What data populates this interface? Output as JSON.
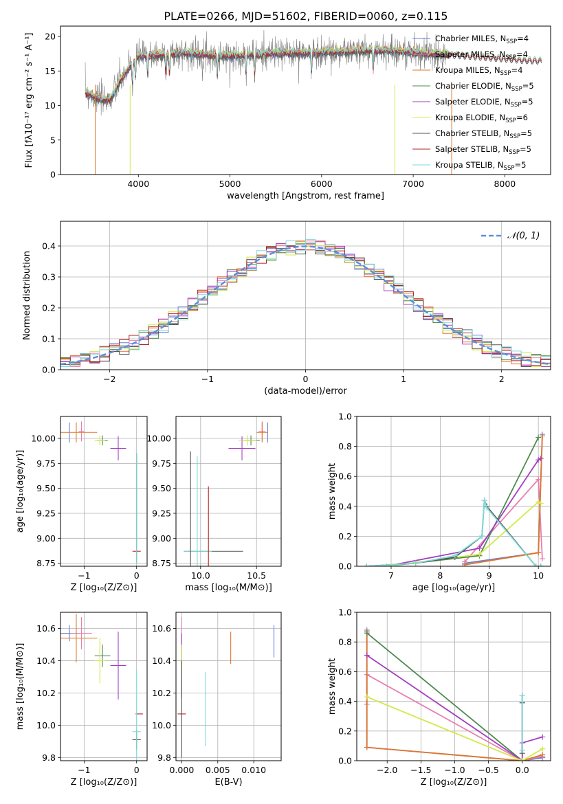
{
  "title": "PLATE=0266, MJD=51602, FIBERID=0060, z=0.115",
  "colors": {
    "chabrier_miles": "#6a7fd8",
    "salpeter_miles": "#e77fb0",
    "kroupa_miles": "#e0762a",
    "chabrier_elodie": "#4f8a4f",
    "salpeter_elodie": "#a33fbf",
    "kroupa_elodie": "#d4e84a",
    "chabrier_stelib": "#555555",
    "salpeter_stelib": "#b22222",
    "kroupa_stelib": "#7fdada",
    "normal": "#5b8fd9"
  },
  "chart_data": [
    {
      "id": "spectrum",
      "type": "line",
      "xlabel": "wavelength [Angstrom, rest frame]",
      "ylabel": "Flux [fλ10⁻¹⁷ erg cm⁻² s⁻¹ A⁻¹]",
      "xlim": [
        3150,
        8500
      ],
      "ylim": [
        0,
        21.5
      ],
      "xticks": [
        "4000",
        "5000",
        "6000",
        "7000",
        "8000"
      ],
      "xtick_values": [
        4000,
        5000,
        6000,
        7000,
        8000
      ],
      "yticks": [
        "0",
        "5",
        "10",
        "15",
        "20"
      ],
      "ytick_values": [
        0,
        5,
        10,
        15,
        20
      ],
      "legend": "upper right",
      "series": [
        {
          "name": "Chabrier MILES, N_SSP=4",
          "key": "chabrier_miles"
        },
        {
          "name": "Salpeter MILES, N_SSP=4",
          "key": "salpeter_miles"
        },
        {
          "name": "Kroupa MILES, N_SSP=4",
          "key": "kroupa_miles"
        },
        {
          "name": "Chabrier ELODIE, N_SSP=5",
          "key": "chabrier_elodie"
        },
        {
          "name": "Salpeter ELODIE, N_SSP=5",
          "key": "salpeter_elodie"
        },
        {
          "name": "Kroupa ELODIE, N_SSP=6",
          "key": "kroupa_elodie"
        },
        {
          "name": "Chabrier STELIB, N_SSP=5",
          "key": "chabrier_stelib"
        },
        {
          "name": "Salpeter STELIB, N_SSP=5",
          "key": "salpeter_stelib"
        },
        {
          "name": "Kroupa STELIB, N_SSP=5",
          "key": "kroupa_stelib"
        }
      ],
      "continuum": {
        "x": [
          3420,
          3500,
          3600,
          3700,
          3800,
          3900,
          4000,
          4200,
          4500,
          4800,
          5000,
          5300,
          5600,
          6000,
          6300,
          6600,
          6900,
          7200,
          7500,
          7800,
          8000,
          8200,
          8400
        ],
        "y": [
          12,
          11.4,
          10.8,
          11,
          13.5,
          15.5,
          17.2,
          17.3,
          17.6,
          17.3,
          17.2,
          17.4,
          17.6,
          17.7,
          17.8,
          18,
          17.8,
          17.5,
          17.3,
          17.0,
          16.8,
          16.6,
          16.5
        ]
      },
      "data_range": [
        3420,
        7350
      ],
      "model_range": [
        3420,
        8400
      ]
    },
    {
      "id": "residual_histogram",
      "type": "histogram",
      "xlabel": "(data-model)/error",
      "ylabel": "Normed distribution",
      "xlim": [
        -2.5,
        2.5
      ],
      "ylim": [
        0,
        0.48
      ],
      "xticks": [
        "−2",
        "−1",
        "0",
        "1",
        "2"
      ],
      "xtick_values": [
        -2,
        -1,
        0,
        1,
        2
      ],
      "yticks": [
        "0.0",
        "0.1",
        "0.2",
        "0.3",
        "0.4"
      ],
      "ytick_values": [
        0,
        0.1,
        0.2,
        0.3,
        0.4
      ],
      "legend_entry": "𝒩(0, 1)",
      "bin_width": 0.1,
      "grid": true
    },
    {
      "id": "age_vs_Z",
      "type": "scatter",
      "xlabel": "Z [log₁₀(Z/Z⊙)]",
      "ylabel": "age  [log₁₀(age/yr)]",
      "xlim": [
        -1.45,
        0.2
      ],
      "ylim": [
        8.72,
        10.22
      ],
      "xticks": [
        "−1",
        "0"
      ],
      "xtick_values": [
        -1,
        0
      ],
      "yticks": [
        "8.75",
        "9.00",
        "9.25",
        "9.50",
        "9.75",
        "10.00"
      ],
      "ytick_values": [
        8.75,
        9.0,
        9.25,
        9.5,
        9.75,
        10.0
      ],
      "points": [
        {
          "key": "chabrier_miles",
          "x": -1.28,
          "y": 10.06,
          "xerr": 0.0,
          "yerr": 0.1
        },
        {
          "key": "salpeter_miles",
          "x": -1.05,
          "y": 10.07,
          "xerr": 0.05,
          "yerr": 0.1
        },
        {
          "key": "kroupa_miles",
          "x": -1.15,
          "y": 10.06,
          "xerr": 0.4,
          "yerr": 0.1
        },
        {
          "key": "chabrier_elodie",
          "x": -0.65,
          "y": 9.98,
          "xerr": 0.1,
          "yerr": 0.05
        },
        {
          "key": "salpeter_elodie",
          "x": -0.35,
          "y": 9.9,
          "xerr": 0.15,
          "yerr": 0.12
        },
        {
          "key": "kroupa_elodie",
          "x": -0.7,
          "y": 9.98,
          "xerr": 0.1,
          "yerr": 0.05
        },
        {
          "key": "chabrier_stelib",
          "x": 0.0,
          "y": 9.3,
          "xerr": 0.0,
          "yerr": 0.55
        },
        {
          "key": "salpeter_stelib",
          "x": 0.0,
          "y": 8.87,
          "xerr": 0.0,
          "yerr": 0.0
        },
        {
          "key": "kroupa_stelib",
          "x": 0.0,
          "y": 9.3,
          "xerr": 0.0,
          "yerr": 0.55
        }
      ]
    },
    {
      "id": "age_vs_mass",
      "type": "scatter",
      "xlabel": "mass [log₁₀(M/M⊙)]",
      "ylabel": "",
      "xlim": [
        9.78,
        10.72
      ],
      "ylim": [
        8.72,
        10.22
      ],
      "xticks": [
        "10.0",
        "10.5"
      ],
      "xtick_values": [
        10.0,
        10.5
      ],
      "yticks": [
        "8.75",
        "9.00",
        "9.25",
        "9.50",
        "9.75",
        "10.00"
      ],
      "ytick_values": [
        8.75,
        9.0,
        9.25,
        9.5,
        9.75,
        10.0
      ],
      "points": [
        {
          "key": "chabrier_miles",
          "x": 10.6,
          "y": 10.06,
          "xerr": 0.0,
          "yerr": 0.1
        },
        {
          "key": "salpeter_miles",
          "x": 10.55,
          "y": 10.07,
          "xerr": 0.03,
          "yerr": 0.1
        },
        {
          "key": "kroupa_miles",
          "x": 10.55,
          "y": 10.06,
          "xerr": 0.05,
          "yerr": 0.1
        },
        {
          "key": "chabrier_elodie",
          "x": 10.45,
          "y": 9.98,
          "xerr": 0.08,
          "yerr": 0.05
        },
        {
          "key": "salpeter_elodie",
          "x": 10.37,
          "y": 9.9,
          "xerr": 0.12,
          "yerr": 0.12
        },
        {
          "key": "kroupa_elodie",
          "x": 10.42,
          "y": 9.98,
          "xerr": 0.08,
          "yerr": 0.05
        },
        {
          "key": "chabrier_stelib",
          "x": 9.91,
          "y": 8.87,
          "xerr": 0.0,
          "yerr": 1.0
        },
        {
          "key": "salpeter_stelib",
          "x": 10.07,
          "y": 8.87,
          "xerr": 0.0,
          "yerr": 0.65
        },
        {
          "key": "kroupa_stelib",
          "x": 9.97,
          "y": 8.87,
          "xerr": 0.0,
          "yerr": 0.95
        }
      ],
      "extra_segments": [
        {
          "key": "chabrier_stelib",
          "x0": 9.85,
          "x1": 10.38,
          "y": 8.87
        },
        {
          "key": "kroupa_stelib",
          "x0": 9.85,
          "x1": 10.1,
          "y": 8.87
        }
      ]
    },
    {
      "id": "massweight_vs_age",
      "type": "line",
      "xlabel": "age  [log₁₀(age/yr)]",
      "ylabel": "mass weight",
      "xlim": [
        6.3,
        10.25
      ],
      "ylim": [
        0,
        1.0
      ],
      "xticks": [
        "7",
        "8",
        "9",
        "10"
      ],
      "xtick_values": [
        7,
        8,
        9,
        10
      ],
      "yticks": [
        "0.0",
        "0.2",
        "0.4",
        "0.6",
        "0.8",
        "1.0"
      ],
      "ytick_values": [
        0,
        0.2,
        0.4,
        0.6,
        0.8,
        1.0
      ],
      "series": [
        {
          "key": "chabrier_miles",
          "x": [
            8.5,
            10.0,
            10.08
          ],
          "y": [
            0.02,
            0.09,
            0.88
          ]
        },
        {
          "key": "salpeter_miles",
          "x": [
            8.5,
            10.0,
            10.08
          ],
          "y": [
            0.03,
            0.58,
            0.05
          ]
        },
        {
          "key": "kroupa_miles",
          "x": [
            8.5,
            10.0,
            10.08
          ],
          "y": [
            0.01,
            0.09,
            0.87
          ]
        },
        {
          "key": "chabrier_elodie",
          "x": [
            6.9,
            8.8,
            10.0
          ],
          "y": [
            0.0,
            0.07,
            0.86
          ]
        },
        {
          "key": "salpeter_elodie",
          "x": [
            6.9,
            8.8,
            10.0,
            10.05
          ],
          "y": [
            0.0,
            0.12,
            0.71,
            0.72
          ]
        },
        {
          "key": "kroupa_elodie",
          "x": [
            6.9,
            8.8,
            10.0,
            10.05
          ],
          "y": [
            0.0,
            0.08,
            0.43,
            0.42
          ]
        },
        {
          "key": "chabrier_stelib",
          "x": [
            6.5,
            7.5,
            8.3,
            8.85,
            8.9,
            8.95,
            9.95,
            10.05
          ],
          "y": [
            0.0,
            0.02,
            0.06,
            0.2,
            0.44,
            0.4,
            0.0,
            0.0
          ]
        },
        {
          "key": "kroupa_stelib",
          "x": [
            6.5,
            7.5,
            8.3,
            8.85,
            8.9,
            8.95,
            9.95,
            10.05
          ],
          "y": [
            0.0,
            0.02,
            0.07,
            0.2,
            0.44,
            0.39,
            0.0,
            0.0
          ]
        }
      ]
    },
    {
      "id": "mass_vs_Z",
      "type": "scatter",
      "xlabel": "Z [log₁₀(Z/Z⊙)]",
      "ylabel": "mass [log₁₀(M/M⊙)]",
      "xlim": [
        -1.45,
        0.2
      ],
      "ylim": [
        9.78,
        10.7
      ],
      "xticks": [
        "−1",
        "0"
      ],
      "xtick_values": [
        -1,
        0
      ],
      "yticks": [
        "9.8",
        "10.0",
        "10.2",
        "10.4",
        "10.6"
      ],
      "ytick_values": [
        9.8,
        10.0,
        10.2,
        10.4,
        10.6
      ],
      "points": [
        {
          "key": "chabrier_miles",
          "x": -1.28,
          "y": 10.57,
          "xerr": 0.2,
          "yerr": 0.05
        },
        {
          "key": "salpeter_miles",
          "x": -1.05,
          "y": 10.57,
          "xerr": 0.2,
          "yerr": 0.1
        },
        {
          "key": "kroupa_miles",
          "x": -1.15,
          "y": 10.54,
          "xerr": 0.4,
          "yerr": 0.15
        },
        {
          "key": "chabrier_elodie",
          "x": -0.65,
          "y": 10.43,
          "xerr": 0.15,
          "yerr": 0.07
        },
        {
          "key": "salpeter_elodie",
          "x": -0.35,
          "y": 10.37,
          "xerr": 0.15,
          "yerr": 0.21
        },
        {
          "key": "kroupa_elodie",
          "x": -0.7,
          "y": 10.4,
          "xerr": 0.1,
          "yerr": 0.14
        },
        {
          "key": "chabrier_stelib",
          "x": 0.0,
          "y": 9.91,
          "xerr": 0.08,
          "yerr": 0.06
        },
        {
          "key": "salpeter_stelib",
          "x": 0.05,
          "y": 10.07,
          "xerr": 0.07,
          "yerr": 0.0
        },
        {
          "key": "kroupa_stelib",
          "x": 0.0,
          "y": 9.96,
          "xerr": 0.08,
          "yerr": 0.38
        }
      ]
    },
    {
      "id": "mass_vs_ebv",
      "type": "scatter",
      "xlabel": "E(B-V)",
      "ylabel": "",
      "xlim": [
        -0.0008,
        0.0138
      ],
      "ylim": [
        9.78,
        10.7
      ],
      "xticks": [
        "0.000",
        "0.005",
        "0.010"
      ],
      "xtick_values": [
        0.0,
        0.005,
        0.01
      ],
      "yticks": [
        "9.8",
        "10.0",
        "10.2",
        "10.4",
        "10.6"
      ],
      "ytick_values": [
        9.8,
        10.0,
        10.2,
        10.4,
        10.6
      ],
      "points": [
        {
          "key": "chabrier_miles",
          "x": 0.0128,
          "y": 10.52,
          "xerr": 0.0,
          "yerr": 0.1
        },
        {
          "key": "salpeter_miles",
          "x": 0.0,
          "y": 10.57,
          "xerr": 0.0,
          "yerr": 0.1
        },
        {
          "key": "kroupa_miles",
          "x": 0.0068,
          "y": 10.48,
          "xerr": 0.0,
          "yerr": 0.1
        },
        {
          "key": "chabrier_elodie",
          "x": 0.0,
          "y": 10.42,
          "xerr": 0.0,
          "yerr": 0.07
        },
        {
          "key": "salpeter_elodie",
          "x": 0.0,
          "y": 10.37,
          "xerr": 0.0,
          "yerr": 0.2
        },
        {
          "key": "kroupa_elodie",
          "x": 0.0,
          "y": 10.4,
          "xerr": 0.0,
          "yerr": 0.1
        },
        {
          "key": "chabrier_stelib",
          "x": 0.0,
          "y": 10.1,
          "xerr": 0.0,
          "yerr": 0.3
        },
        {
          "key": "salpeter_stelib",
          "x": 0.0,
          "y": 10.07,
          "xerr": 0.0,
          "yerr": 0.0
        },
        {
          "key": "kroupa_stelib",
          "x": 0.0033,
          "y": 10.1,
          "xerr": 0.0,
          "yerr": 0.23
        }
      ]
    },
    {
      "id": "massweight_vs_Z",
      "type": "line",
      "xlabel": "Z [log₁₀(Z/Z⊙)]",
      "ylabel": "mass weight",
      "xlim": [
        -2.45,
        0.42
      ],
      "ylim": [
        0,
        1.0
      ],
      "xticks": [
        "−2.0",
        "−1.5",
        "−1.0",
        "−0.5",
        "0.0"
      ],
      "xtick_values": [
        -2.0,
        -1.5,
        -1.0,
        -0.5,
        0.0
      ],
      "yticks": [
        "0.0",
        "0.2",
        "0.4",
        "0.6",
        "0.8",
        "1.0"
      ],
      "ytick_values": [
        0,
        0.2,
        0.4,
        0.6,
        0.8,
        1.0
      ],
      "series": [
        {
          "key": "chabrier_miles",
          "x": [
            -2.3,
            -2.3,
            0.0,
            0.3
          ],
          "y": [
            0.88,
            0.09,
            0.0,
            0.02
          ]
        },
        {
          "key": "salpeter_miles",
          "x": [
            -2.3,
            -2.3,
            0.0,
            0.3
          ],
          "y": [
            0.38,
            0.58,
            0.0,
            0.03
          ]
        },
        {
          "key": "kroupa_miles",
          "x": [
            -2.3,
            -2.3,
            0.0,
            0.3
          ],
          "y": [
            0.87,
            0.09,
            0.0,
            0.04
          ]
        },
        {
          "key": "chabrier_elodie",
          "x": [
            -2.3,
            0.0
          ],
          "y": [
            0.86,
            0.0
          ]
        },
        {
          "key": "salpeter_elodie",
          "x": [
            -2.3,
            0.0,
            0.0,
            0.3
          ],
          "y": [
            0.71,
            0.0,
            0.12,
            0.16
          ]
        },
        {
          "key": "kroupa_elodie",
          "x": [
            -2.3,
            0.0,
            0.3
          ],
          "y": [
            0.43,
            0.0,
            0.08
          ]
        },
        {
          "key": "chabrier_stelib",
          "x": [
            0.0,
            0.0,
            0.0
          ],
          "y": [
            0.44,
            0.05,
            0.39
          ]
        },
        {
          "key": "kroupa_stelib",
          "x": [
            0.0,
            0.0,
            0.0
          ],
          "y": [
            0.44,
            0.07,
            0.4
          ]
        }
      ]
    }
  ]
}
